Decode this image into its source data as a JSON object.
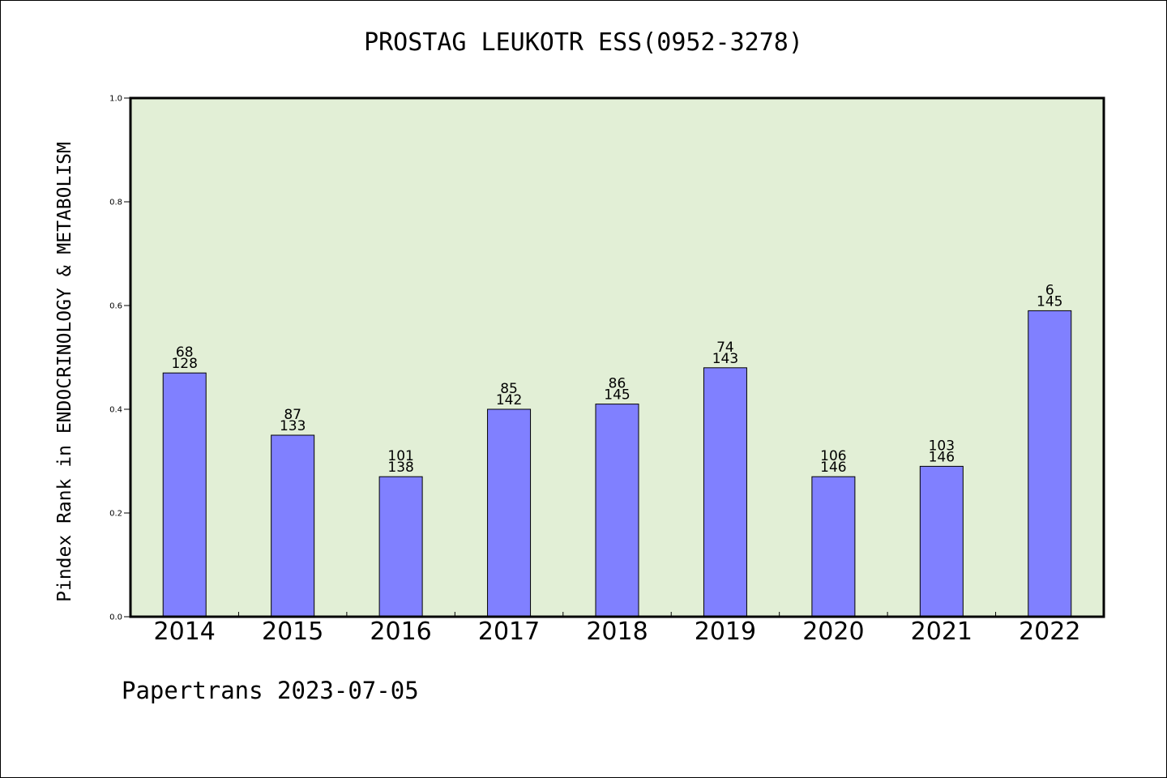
{
  "title": "PROSTAG LEUKOTR ESS(0952-3278)",
  "footer": "Papertrans 2023-07-05",
  "colors": {
    "plot_background": "#e2efd6",
    "bar_fill": "#8080ff",
    "bar_stroke": "#000000",
    "axis": "#000000"
  },
  "chart_data": {
    "type": "bar",
    "title": "PROSTAG LEUKOTR ESS(0952-3278)",
    "xlabel": "",
    "ylabel": "Pindex Rank in ENDOCRINOLOGY & METABOLISM",
    "ylim": [
      0.0,
      1.0
    ],
    "yticks": [
      "0.0",
      "0.2",
      "0.4",
      "0.6",
      "0.8",
      "1.0"
    ],
    "grid": false,
    "categories": [
      "2014",
      "2015",
      "2016",
      "2017",
      "2018",
      "2019",
      "2020",
      "2021",
      "2022"
    ],
    "values": [
      0.47,
      0.35,
      0.27,
      0.4,
      0.41,
      0.48,
      0.27,
      0.29,
      0.59
    ],
    "rank_labels": [
      "68",
      "87",
      "101",
      "85",
      "86",
      "74",
      "106",
      "103",
      "6"
    ],
    "total_labels": [
      "128",
      "133",
      "138",
      "142",
      "145",
      "143",
      "146",
      "146",
      "145"
    ]
  }
}
